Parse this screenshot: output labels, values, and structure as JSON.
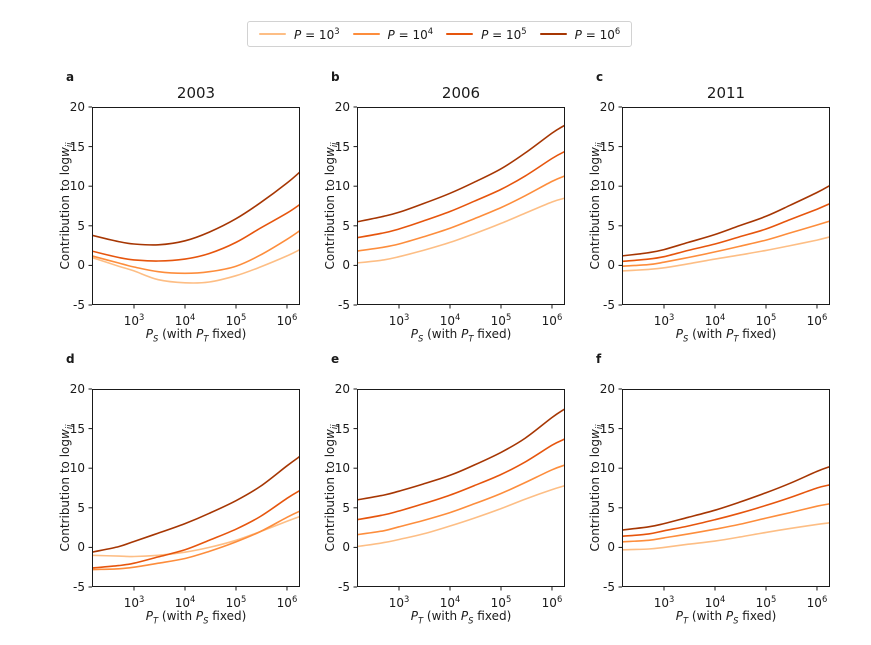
{
  "figure": {
    "background": "#ffffff",
    "axis_color": "#1a1a1a",
    "legend": {
      "entries": [
        {
          "label": "*P* = 10^{3}",
          "color": "#fdbe85"
        },
        {
          "label": "*P* = 10^{4}",
          "color": "#fd8d3c"
        },
        {
          "label": "*P* = 10^{5}",
          "color": "#e6550d"
        },
        {
          "label": "*P* = 10^{6}",
          "color": "#a63603"
        }
      ]
    }
  },
  "chart_data": [
    {
      "type": "line",
      "panel": "a",
      "title": "2003",
      "xlabel": "*P*_{S} (with *P*_{T} fixed)",
      "ylabel": "Contribution to log*w*_{ij}",
      "xscale": "log",
      "xlim": [
        150,
        1800000
      ],
      "ylim": [
        -5,
        20
      ],
      "xticks": [
        {
          "value": 1000,
          "label": "10^{3}"
        },
        {
          "value": 10000,
          "label": "10^{4}"
        },
        {
          "value": 100000,
          "label": "10^{5}"
        },
        {
          "value": 1000000,
          "label": "10^{6}"
        }
      ],
      "yticks": [
        -5,
        0,
        5,
        10,
        15,
        20
      ],
      "grid": false,
      "series": [
        {
          "name": "*P* = 10^{3}",
          "x": [
            150,
            500,
            1000,
            3000,
            10000,
            30000,
            100000,
            300000,
            1000000,
            1800000
          ],
          "y": [
            1.0,
            -0.1,
            -0.7,
            -1.8,
            -2.2,
            -2.1,
            -1.3,
            -0.2,
            1.2,
            2.0
          ]
        },
        {
          "name": "*P* = 10^{4}",
          "x": [
            150,
            500,
            1000,
            3000,
            10000,
            30000,
            100000,
            300000,
            1000000,
            1800000
          ],
          "y": [
            1.2,
            0.3,
            -0.2,
            -0.8,
            -1.0,
            -0.8,
            -0.1,
            1.3,
            3.3,
            4.4
          ]
        },
        {
          "name": "*P* = 10^{5}",
          "x": [
            150,
            500,
            1000,
            3000,
            10000,
            30000,
            100000,
            300000,
            1000000,
            1800000
          ],
          "y": [
            1.8,
            1.0,
            0.7,
            0.55,
            0.8,
            1.5,
            2.9,
            4.7,
            6.6,
            7.7
          ]
        },
        {
          "name": "*P* = 10^{6}",
          "x": [
            150,
            500,
            1000,
            3000,
            10000,
            30000,
            100000,
            300000,
            1000000,
            1800000
          ],
          "y": [
            3.8,
            3.0,
            2.7,
            2.6,
            3.1,
            4.2,
            5.9,
            7.9,
            10.4,
            11.8
          ]
        }
      ]
    },
    {
      "type": "line",
      "panel": "b",
      "title": "2006",
      "xlabel": "*P*_{S} (with *P*_{T} fixed)",
      "ylabel": "Contribution to log*w*_{ij}",
      "xscale": "log",
      "xlim": [
        150,
        1800000
      ],
      "ylim": [
        -5,
        20
      ],
      "xticks": [
        {
          "value": 1000,
          "label": "10^{3}"
        },
        {
          "value": 10000,
          "label": "10^{4}"
        },
        {
          "value": 100000,
          "label": "10^{5}"
        },
        {
          "value": 1000000,
          "label": "10^{6}"
        }
      ],
      "yticks": [
        -5,
        0,
        5,
        10,
        15,
        20
      ],
      "grid": false,
      "series": [
        {
          "name": "*P* = 10^{3}",
          "x": [
            150,
            500,
            1000,
            3000,
            10000,
            30000,
            100000,
            300000,
            1000000,
            1800000
          ],
          "y": [
            0.3,
            0.7,
            1.1,
            1.9,
            2.9,
            4.0,
            5.3,
            6.6,
            8.0,
            8.5
          ]
        },
        {
          "name": "*P* = 10^{4}",
          "x": [
            150,
            500,
            1000,
            3000,
            10000,
            30000,
            100000,
            300000,
            1000000,
            1800000
          ],
          "y": [
            1.8,
            2.3,
            2.7,
            3.6,
            4.7,
            5.9,
            7.3,
            8.8,
            10.6,
            11.3
          ]
        },
        {
          "name": "*P* = 10^{5}",
          "x": [
            150,
            500,
            1000,
            3000,
            10000,
            30000,
            100000,
            300000,
            1000000,
            1800000
          ],
          "y": [
            3.5,
            4.1,
            4.6,
            5.6,
            6.8,
            8.1,
            9.6,
            11.3,
            13.5,
            14.4
          ]
        },
        {
          "name": "*P* = 10^{6}",
          "x": [
            150,
            500,
            1000,
            3000,
            10000,
            30000,
            100000,
            300000,
            1000000,
            1800000
          ],
          "y": [
            5.5,
            6.2,
            6.7,
            7.8,
            9.1,
            10.5,
            12.2,
            14.2,
            16.7,
            17.7
          ]
        }
      ]
    },
    {
      "type": "line",
      "panel": "c",
      "title": "2011",
      "xlabel": "*P*_{S} (with *P*_{T} fixed)",
      "ylabel": "Contribution to log*w*_{ij}",
      "xscale": "log",
      "xlim": [
        150,
        1800000
      ],
      "ylim": [
        -5,
        20
      ],
      "xticks": [
        {
          "value": 1000,
          "label": "10^{3}"
        },
        {
          "value": 10000,
          "label": "10^{4}"
        },
        {
          "value": 100000,
          "label": "10^{5}"
        },
        {
          "value": 1000000,
          "label": "10^{6}"
        }
      ],
      "yticks": [
        -5,
        0,
        5,
        10,
        15,
        20
      ],
      "grid": false,
      "series": [
        {
          "name": "*P* = 10^{3}",
          "x": [
            150,
            500,
            1000,
            3000,
            10000,
            30000,
            100000,
            300000,
            1000000,
            1800000
          ],
          "y": [
            -0.7,
            -0.5,
            -0.3,
            0.2,
            0.8,
            1.3,
            1.9,
            2.5,
            3.2,
            3.6
          ]
        },
        {
          "name": "*P* = 10^{4}",
          "x": [
            150,
            500,
            1000,
            3000,
            10000,
            30000,
            100000,
            300000,
            1000000,
            1800000
          ],
          "y": [
            -0.1,
            0.1,
            0.4,
            1.0,
            1.7,
            2.4,
            3.2,
            4.1,
            5.1,
            5.6
          ]
        },
        {
          "name": "*P* = 10^{5}",
          "x": [
            150,
            500,
            1000,
            3000,
            10000,
            30000,
            100000,
            300000,
            1000000,
            1800000
          ],
          "y": [
            0.5,
            0.8,
            1.1,
            1.9,
            2.7,
            3.6,
            4.6,
            5.8,
            7.1,
            7.8
          ]
        },
        {
          "name": "*P* = 10^{6}",
          "x": [
            150,
            500,
            1000,
            3000,
            10000,
            30000,
            100000,
            300000,
            1000000,
            1800000
          ],
          "y": [
            1.2,
            1.6,
            2.0,
            2.9,
            3.9,
            5.0,
            6.2,
            7.6,
            9.2,
            10.1
          ]
        }
      ]
    },
    {
      "type": "line",
      "panel": "d",
      "title": "",
      "xlabel": "*P*_{T} (with *P*_{S} fixed)",
      "ylabel": "Contribution to log*w*_{ij}",
      "xscale": "log",
      "xlim": [
        150,
        1800000
      ],
      "ylim": [
        -5,
        20
      ],
      "xticks": [
        {
          "value": 1000,
          "label": "10^{3}"
        },
        {
          "value": 10000,
          "label": "10^{4}"
        },
        {
          "value": 100000,
          "label": "10^{5}"
        },
        {
          "value": 1000000,
          "label": "10^{6}"
        }
      ],
      "yticks": [
        -5,
        0,
        5,
        10,
        15,
        20
      ],
      "grid": false,
      "series": [
        {
          "name": "*P* = 10^{3}",
          "x": [
            150,
            500,
            1000,
            3000,
            10000,
            30000,
            100000,
            300000,
            1000000,
            1800000
          ],
          "y": [
            -1.0,
            -1.1,
            -1.15,
            -1.0,
            -0.6,
            0.0,
            0.9,
            2.0,
            3.3,
            3.9
          ]
        },
        {
          "name": "*P* = 10^{4}",
          "x": [
            150,
            500,
            1000,
            3000,
            10000,
            30000,
            100000,
            300000,
            1000000,
            1800000
          ],
          "y": [
            -2.8,
            -2.7,
            -2.5,
            -2.0,
            -1.4,
            -0.5,
            0.7,
            2.0,
            3.8,
            4.6
          ]
        },
        {
          "name": "*P* = 10^{5}",
          "x": [
            150,
            500,
            1000,
            3000,
            10000,
            30000,
            100000,
            300000,
            1000000,
            1800000
          ],
          "y": [
            -2.6,
            -2.3,
            -2.0,
            -1.2,
            -0.3,
            0.9,
            2.3,
            3.9,
            6.2,
            7.2
          ]
        },
        {
          "name": "*P* = 10^{6}",
          "x": [
            150,
            500,
            1000,
            3000,
            10000,
            30000,
            100000,
            300000,
            1000000,
            1800000
          ],
          "y": [
            -0.6,
            0.1,
            0.75,
            1.8,
            3.0,
            4.3,
            5.9,
            7.7,
            10.3,
            11.5
          ]
        }
      ]
    },
    {
      "type": "line",
      "panel": "e",
      "title": "",
      "xlabel": "*P*_{T} (with *P*_{S} fixed)",
      "ylabel": "Contribution to log*w*_{ij}",
      "xscale": "log",
      "xlim": [
        150,
        1800000
      ],
      "ylim": [
        -5,
        20
      ],
      "xticks": [
        {
          "value": 1000,
          "label": "10^{3}"
        },
        {
          "value": 10000,
          "label": "10^{4}"
        },
        {
          "value": 100000,
          "label": "10^{5}"
        },
        {
          "value": 1000000,
          "label": "10^{6}"
        }
      ],
      "yticks": [
        -5,
        0,
        5,
        10,
        15,
        20
      ],
      "grid": false,
      "series": [
        {
          "name": "*P* = 10^{3}",
          "x": [
            150,
            500,
            1000,
            3000,
            10000,
            30000,
            100000,
            300000,
            1000000,
            1800000
          ],
          "y": [
            0.1,
            0.6,
            1.0,
            1.7,
            2.7,
            3.7,
            4.9,
            6.1,
            7.3,
            7.8
          ]
        },
        {
          "name": "*P* = 10^{4}",
          "x": [
            150,
            500,
            1000,
            3000,
            10000,
            30000,
            100000,
            300000,
            1000000,
            1800000
          ],
          "y": [
            1.6,
            2.1,
            2.6,
            3.4,
            4.4,
            5.5,
            6.8,
            8.2,
            9.8,
            10.4
          ]
        },
        {
          "name": "*P* = 10^{5}",
          "x": [
            150,
            500,
            1000,
            3000,
            10000,
            30000,
            100000,
            300000,
            1000000,
            1800000
          ],
          "y": [
            3.5,
            4.1,
            4.6,
            5.5,
            6.6,
            7.8,
            9.2,
            10.8,
            12.9,
            13.7
          ]
        },
        {
          "name": "*P* = 10^{6}",
          "x": [
            150,
            500,
            1000,
            3000,
            10000,
            30000,
            100000,
            300000,
            1000000,
            1800000
          ],
          "y": [
            6.0,
            6.6,
            7.1,
            8.0,
            9.1,
            10.4,
            12.0,
            13.8,
            16.4,
            17.5
          ]
        }
      ]
    },
    {
      "type": "line",
      "panel": "f",
      "title": "",
      "xlabel": "*P*_{T} (with *P*_{S} fixed)",
      "ylabel": "Contribution to log*w*_{ij}",
      "xscale": "log",
      "xlim": [
        150,
        1800000
      ],
      "ylim": [
        -5,
        20
      ],
      "xticks": [
        {
          "value": 1000,
          "label": "10^{3}"
        },
        {
          "value": 10000,
          "label": "10^{4}"
        },
        {
          "value": 100000,
          "label": "10^{5}"
        },
        {
          "value": 1000000,
          "label": "10^{6}"
        }
      ],
      "yticks": [
        -5,
        0,
        5,
        10,
        15,
        20
      ],
      "grid": false,
      "series": [
        {
          "name": "*P* = 10^{3}",
          "x": [
            150,
            500,
            1000,
            3000,
            10000,
            30000,
            100000,
            300000,
            1000000,
            1800000
          ],
          "y": [
            -0.3,
            -0.2,
            0.0,
            0.4,
            0.8,
            1.3,
            1.9,
            2.4,
            2.9,
            3.1
          ]
        },
        {
          "name": "*P* = 10^{4}",
          "x": [
            150,
            500,
            1000,
            3000,
            10000,
            30000,
            100000,
            300000,
            1000000,
            1800000
          ],
          "y": [
            0.7,
            0.9,
            1.2,
            1.7,
            2.3,
            2.9,
            3.7,
            4.4,
            5.2,
            5.5
          ]
        },
        {
          "name": "*P* = 10^{5}",
          "x": [
            150,
            500,
            1000,
            3000,
            10000,
            30000,
            100000,
            300000,
            1000000,
            1800000
          ],
          "y": [
            1.4,
            1.7,
            2.1,
            2.7,
            3.5,
            4.3,
            5.3,
            6.3,
            7.5,
            7.9
          ]
        },
        {
          "name": "*P* = 10^{6}",
          "x": [
            150,
            500,
            1000,
            3000,
            10000,
            30000,
            100000,
            300000,
            1000000,
            1800000
          ],
          "y": [
            2.2,
            2.6,
            3.0,
            3.8,
            4.7,
            5.7,
            6.9,
            8.1,
            9.6,
            10.2
          ]
        }
      ]
    }
  ]
}
